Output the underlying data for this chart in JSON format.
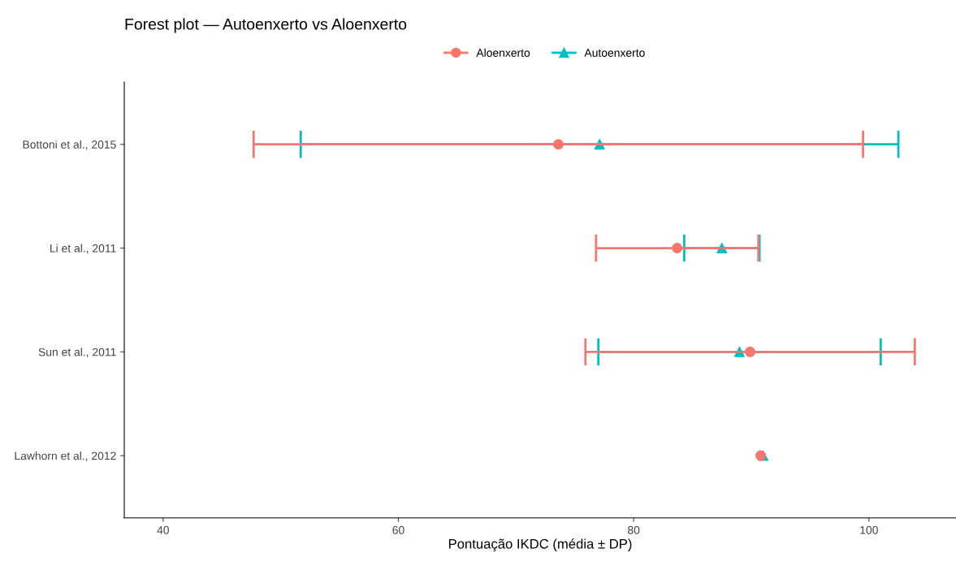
{
  "chart_data": {
    "type": "scatter",
    "title": "Forest plot — Autoenxerto vs Aloenxerto",
    "xlabel": "Pontuação IKDC (média ± DP)",
    "orientation": "horizontal",
    "categories": [
      "Bottoni et al., 2015",
      "Li et al., 2011",
      "Sun et al., 2011",
      "Lawhorn et al., 2012"
    ],
    "series": [
      {
        "name": "Aloenxerto",
        "color": "#f8766d",
        "marker": "circle",
        "values": [
          73.6,
          83.7,
          89.9,
          90.8
        ],
        "errors": [
          25.9,
          6.9,
          14.0,
          null
        ]
      },
      {
        "name": "Autoenxerto",
        "color": "#00bfc4",
        "marker": "triangle",
        "values": [
          77.1,
          87.5,
          89.0,
          91.0
        ],
        "errors": [
          25.4,
          3.2,
          12.0,
          null
        ]
      }
    ],
    "xlim": [
      36.7,
      107.4
    ],
    "xticks": [
      40,
      60,
      80,
      100
    ],
    "grid": false,
    "legend": "top"
  }
}
